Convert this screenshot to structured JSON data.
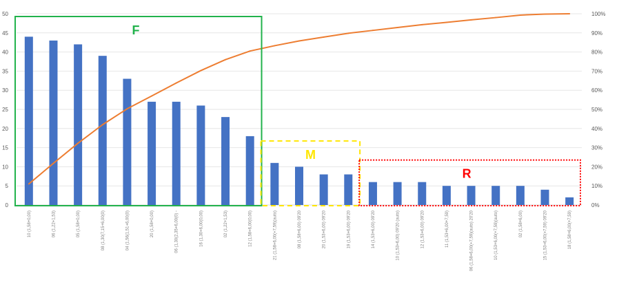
{
  "chart_data": {
    "type": "bar",
    "title": "",
    "xlabel": "",
    "ylabel": "",
    "ylim": [
      0,
      50
    ],
    "y_ticks": [
      "0",
      "5",
      "10",
      "15",
      "20",
      "25",
      "30",
      "35",
      "40",
      "45",
      "50"
    ],
    "y2lim": [
      0,
      100
    ],
    "y2_ticks": [
      "0%",
      "10%",
      "20%",
      "30%",
      "40%",
      "50%",
      "60%",
      "70%",
      "80%",
      "90%",
      "100%"
    ],
    "grid": true,
    "categories": [
      "10 (1,58+0,00)",
      "06 (1,22+1,53)",
      "05 (1,58+0,00)",
      "08 (1,30(7,15+6,00(0)",
      "04 (1,56(1,51+6,00(0)",
      "20 (1,58+0,00)",
      "06 (1,30(2,35+6,00(0) -",
      "16 (1,30+6,00(0,00)",
      "02 (1,22+1,53)",
      "12 (1,58+6,00(0,00)",
      "21 (1,58+6,00(+7,59)(auto)",
      "08 (1,58+6,00) 09'20",
      "20 (1,53+6,00) 09'20",
      "19 (1,53+6,00) 09'20",
      "14 (1,53+6,00) 09'20",
      "10 (1,53+6,00) 09'20 (auto)",
      "12 (1,53+6,00) 09'20",
      "11 (1,53+6,00+7,59)",
      "06 (1,58+6,00(+7,59)(auto) 20'20",
      "10 (1,53+6,00(+7,59)(auto)",
      "02 (1,58+6,00)",
      "15 (1,53+6,00(+7,59) 09'20",
      "18 (1,58+6,00(+7,59)"
    ],
    "series": [
      {
        "kind": "bar",
        "color": "#4472c4",
        "values": [
          44,
          43,
          42,
          39,
          33,
          27,
          27,
          26,
          23,
          18,
          11,
          10,
          8,
          8,
          6,
          6,
          6,
          5,
          5,
          5,
          5,
          4,
          2
        ]
      },
      {
        "kind": "line",
        "axis": "secondary",
        "color": "#ed7d31",
        "values": [
          11,
          21.8,
          32.3,
          42,
          50.3,
          57,
          63.8,
          70.3,
          76,
          80.5,
          83.3,
          85.8,
          87.8,
          89.8,
          91.3,
          92.8,
          94.3,
          95.5,
          96.8,
          98,
          99.3,
          99.8,
          100
        ]
      }
    ],
    "zones": [
      {
        "label": "F",
        "color": "#21b24b",
        "style": "solid",
        "from": 0,
        "to": 9
      },
      {
        "label": "M",
        "color": "#ffe600",
        "style": "dashed",
        "from": 10,
        "to": 13
      },
      {
        "label": "R",
        "color": "#ff0000",
        "style": "dotted",
        "from": 14,
        "to": 22
      }
    ]
  }
}
